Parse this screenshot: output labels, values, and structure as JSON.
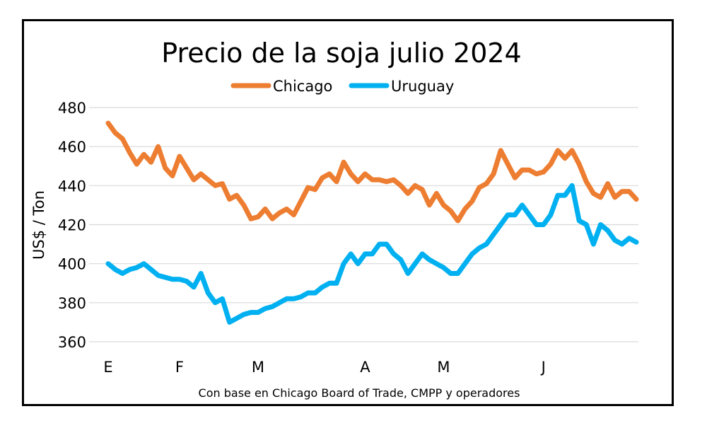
{
  "chart_data": {
    "type": "line",
    "title": "Precio de la soja julio 2024",
    "ylabel": "US$ / Ton",
    "xlabel": "",
    "source_note": "Con base en Chicago Board of Trade, CMPP y operadores",
    "ylim": [
      360,
      480
    ],
    "yticks": [
      360,
      380,
      400,
      420,
      440,
      460,
      480
    ],
    "grid": true,
    "legend_position": "top-center",
    "x_month_labels": [
      "E",
      "F",
      "M",
      "A",
      "M",
      "J"
    ],
    "x_month_label_index": [
      0,
      10,
      21,
      36,
      47,
      61
    ],
    "series": [
      {
        "name": "Chicago",
        "color": "#ED7D31",
        "values": [
          472,
          467,
          464,
          457,
          451,
          456,
          452,
          460,
          449,
          445,
          455,
          449,
          443,
          446,
          443,
          440,
          441,
          433,
          435,
          430,
          423,
          424,
          428,
          423,
          426,
          428,
          425,
          432,
          439,
          438,
          444,
          446,
          442,
          452,
          446,
          442,
          446,
          443,
          443,
          442,
          443,
          440,
          436,
          440,
          438,
          430,
          436,
          430,
          427,
          422,
          428,
          432,
          439,
          441,
          446,
          458,
          451,
          444,
          448,
          448,
          446,
          447,
          451,
          458,
          454,
          458,
          451,
          442,
          436,
          434,
          441,
          434,
          437,
          437,
          433
        ]
      },
      {
        "name": "Uruguay",
        "color": "#00B0F0",
        "values": [
          400,
          397,
          395,
          397,
          398,
          400,
          397,
          394,
          393,
          392,
          392,
          391,
          388,
          395,
          385,
          380,
          382,
          370,
          372,
          374,
          375,
          375,
          377,
          378,
          380,
          382,
          382,
          383,
          385,
          385,
          388,
          390,
          390,
          400,
          405,
          400,
          405,
          405,
          410,
          410,
          405,
          402,
          395,
          400,
          405,
          402,
          400,
          398,
          395,
          395,
          400,
          405,
          408,
          410,
          415,
          420,
          425,
          425,
          430,
          425,
          420,
          420,
          425,
          435,
          435,
          440,
          422,
          420,
          410,
          420,
          417,
          412,
          410,
          413,
          411
        ]
      }
    ]
  }
}
